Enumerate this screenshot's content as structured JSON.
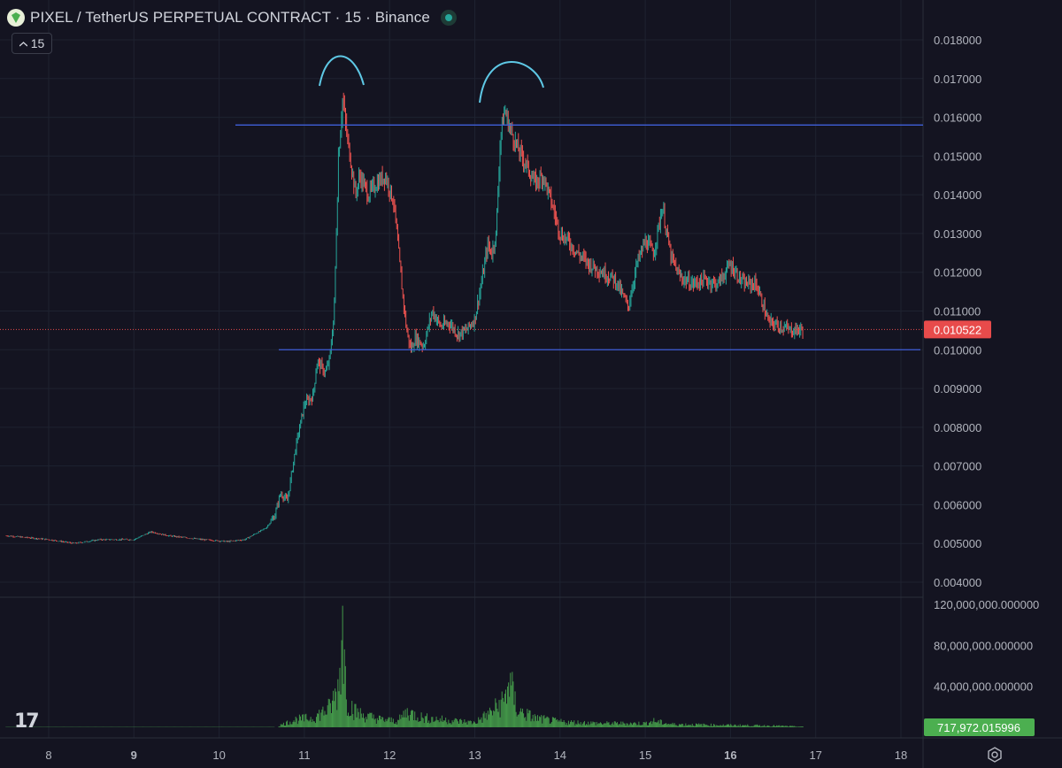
{
  "header": {
    "title": "PIXEL / TetherUS PERPETUAL CONTRACT · 15 · Binance",
    "interval_label": "15"
  },
  "branding": {
    "watermark": "17"
  },
  "colors": {
    "background": "#141421",
    "up": "#26a69a",
    "down": "#ef5350",
    "volume": "#4caf50",
    "trendline": "#3f5ed8",
    "annotation": "#5ec8e5",
    "price_badge": "#e84b4b",
    "volume_badge": "#4caf50"
  },
  "price_scale": {
    "labels": [
      "0.018000",
      "0.017000",
      "0.016000",
      "0.015000",
      "0.014000",
      "0.013000",
      "0.012000",
      "0.011000",
      "0.010000",
      "0.009000",
      "0.008000",
      "0.007000",
      "0.006000",
      "0.005000",
      "0.004000"
    ],
    "last_price": "0.010522"
  },
  "volume_scale": {
    "labels": [
      "120,000,000.000000",
      "80,000,000.000000",
      "40,000,000.000000"
    ],
    "last_volume": "717,972.015996"
  },
  "time_scale": {
    "labels": [
      "8",
      "9",
      "10",
      "11",
      "12",
      "13",
      "14",
      "15",
      "16",
      "17",
      "18"
    ],
    "bold": [
      "9",
      "16"
    ]
  },
  "chart_data": {
    "type": "line",
    "title": "PIXEL / TetherUS PERPETUAL CONTRACT · 15 · Binance",
    "x_unit": "day",
    "price": {
      "x": [
        7.5,
        8.0,
        8.3,
        8.6,
        9.0,
        9.2,
        9.4,
        9.8,
        10.1,
        10.3,
        10.55,
        10.65,
        10.72,
        10.8,
        10.9,
        11.0,
        11.1,
        11.15,
        11.25,
        11.3,
        11.35,
        11.4,
        11.45,
        11.5,
        11.55,
        11.6,
        11.65,
        11.75,
        11.85,
        11.95,
        12.05,
        12.15,
        12.2,
        12.25,
        12.3,
        12.4,
        12.5,
        12.6,
        12.7,
        12.8,
        12.9,
        13.0,
        13.1,
        13.15,
        13.2,
        13.25,
        13.3,
        13.35,
        13.4,
        13.5,
        13.6,
        13.7,
        13.8,
        13.9,
        14.0,
        14.1,
        14.2,
        14.35,
        14.5,
        14.65,
        14.8,
        14.9,
        15.0,
        15.1,
        15.2,
        15.3,
        15.4,
        15.55,
        15.7,
        15.85,
        16.0,
        16.15,
        16.3,
        16.45,
        16.6,
        16.7,
        16.85
      ],
      "y": [
        0.0052,
        0.0051,
        0.005,
        0.0051,
        0.0051,
        0.0053,
        0.0052,
        0.0051,
        0.00505,
        0.0051,
        0.0054,
        0.0057,
        0.0063,
        0.0061,
        0.0075,
        0.0086,
        0.0088,
        0.0097,
        0.0094,
        0.0098,
        0.011,
        0.015,
        0.0165,
        0.0155,
        0.0148,
        0.014,
        0.0145,
        0.014,
        0.0143,
        0.0145,
        0.0138,
        0.0115,
        0.0105,
        0.01,
        0.0103,
        0.0101,
        0.011,
        0.0106,
        0.0107,
        0.0104,
        0.0105,
        0.0108,
        0.012,
        0.0127,
        0.0125,
        0.013,
        0.0155,
        0.0162,
        0.0158,
        0.0152,
        0.0148,
        0.0143,
        0.0145,
        0.0138,
        0.013,
        0.0128,
        0.0125,
        0.0122,
        0.012,
        0.0118,
        0.0111,
        0.0122,
        0.0128,
        0.0125,
        0.0137,
        0.0124,
        0.0119,
        0.0117,
        0.0118,
        0.0117,
        0.0122,
        0.0117,
        0.0117,
        0.0107,
        0.0106,
        0.0105,
        0.010522
      ],
      "ylim": [
        0.0036,
        0.0188
      ]
    },
    "volume": {
      "x": [
        10.7,
        10.9,
        11.1,
        11.3,
        11.4,
        11.45,
        11.5,
        11.6,
        11.7,
        11.9,
        12.1,
        12.2,
        12.4,
        12.6,
        12.8,
        13.0,
        13.2,
        13.35,
        13.4,
        13.5,
        13.7,
        14.0,
        14.5,
        15.0,
        15.1,
        15.3,
        15.8,
        16.5,
        16.85
      ],
      "y": [
        2000000,
        10000000,
        12000000,
        25000000,
        50000000,
        120000000,
        35000000,
        20000000,
        15000000,
        10000000,
        8000000,
        20000000,
        12000000,
        10000000,
        8000000,
        6000000,
        20000000,
        35000000,
        62000000,
        22000000,
        12000000,
        7000000,
        5000000,
        5000000,
        8000000,
        4000000,
        3000000,
        2000000,
        717972.015996
      ],
      "ylim": [
        0,
        120000000
      ]
    },
    "horizontal_lines": [
      0.0158,
      0.01
    ]
  }
}
